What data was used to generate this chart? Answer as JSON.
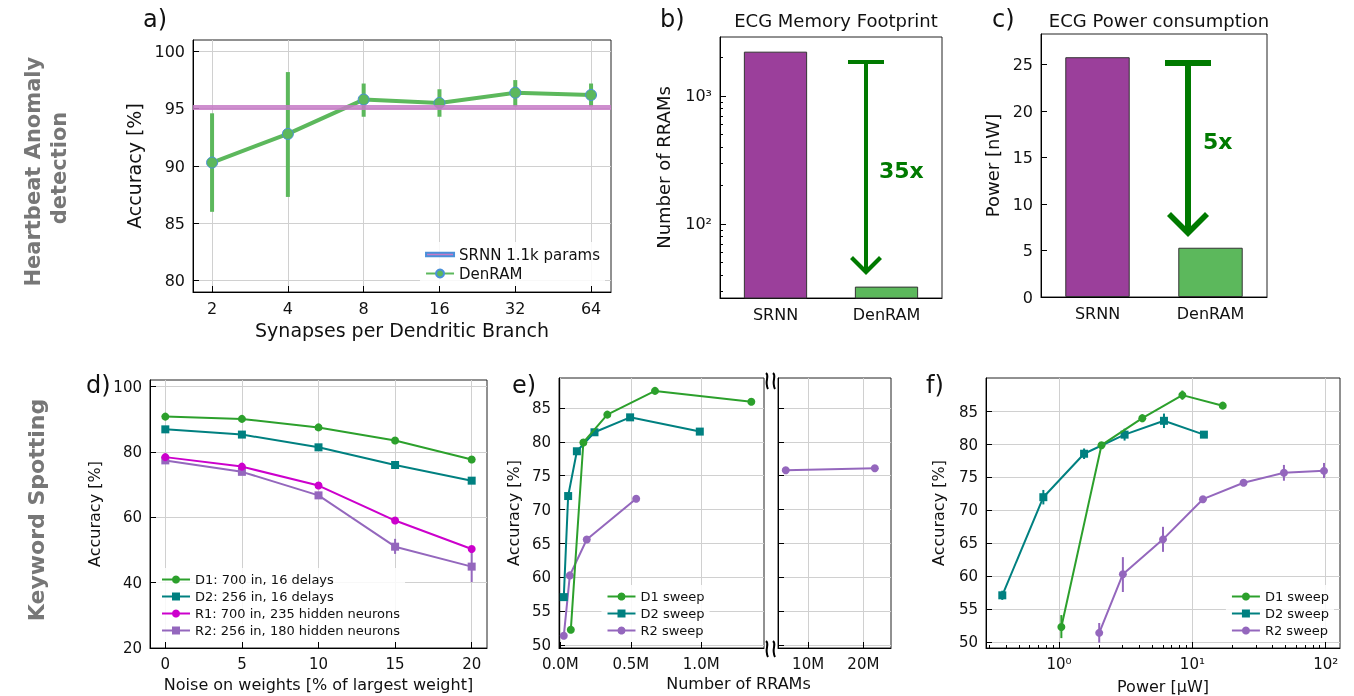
{
  "chart_data": [
    {
      "type": "line",
      "xlabel": "Synapses per Dendritic Branch",
      "ylabel": "Accuracy [%]",
      "log": "x",
      "xlim": [
        1.68,
        76.8
      ],
      "xticks": [
        2,
        4,
        8,
        16,
        32,
        64
      ],
      "ylim": [
        79,
        101
      ],
      "yticks": [
        80,
        85,
        90,
        95,
        100
      ],
      "grid": true,
      "legend": "bottom right",
      "annotations": [
        "a)",
        "Heartbeat Anomaly detection"
      ],
      "series": [
        {
          "name": "SRNN 1.1k params",
          "color": "#c57ac5",
          "marker": "none",
          "x": [
            1.68,
            76.8
          ],
          "values": [
            95.1,
            95.1
          ]
        },
        {
          "name": "DenRAM",
          "color": "#5cb85c",
          "marker": "circle",
          "x": [
            2,
            4,
            8,
            16,
            32,
            64
          ],
          "values": [
            90.3,
            92.8,
            95.8,
            95.5,
            96.4,
            96.2
          ],
          "errors": [
            [
              86.0,
              94.6
            ],
            [
              87.3,
              98.2
            ],
            [
              94.3,
              97.2
            ],
            [
              94.3,
              96.7
            ],
            [
              95.2,
              97.5
            ],
            [
              95.2,
              97.2
            ]
          ]
        }
      ]
    },
    {
      "type": "bar",
      "title": "ECG Memory Footprint",
      "ylabel": "Number of RRAMs",
      "categories": [
        "SRNN",
        "DenRAM"
      ],
      "values": [
        2220,
        32.4
      ],
      "colors": [
        "#9b3f9b",
        "#5cb85c"
      ],
      "log": "y",
      "ylim": [
        26.4,
        2890
      ],
      "yticks": [
        {
          "value": 100,
          "label": "10²"
        },
        {
          "value": 1000,
          "label": "10³"
        }
      ],
      "annotations": [
        "b)",
        "35x"
      ]
    },
    {
      "type": "bar",
      "title": "ECG Power consumption",
      "ylabel": "Power [nW]",
      "categories": [
        "SRNN",
        "DenRAM"
      ],
      "values": [
        25.8,
        5.3
      ],
      "colors": [
        "#9b3f9b",
        "#5cb85c"
      ],
      "ylim": [
        0,
        28.3
      ],
      "yticks": [
        0,
        5,
        10,
        15,
        20,
        25
      ],
      "annotations": [
        "c)",
        "5x"
      ]
    },
    {
      "type": "line",
      "xlabel": "Noise on weights [% of largest weight]",
      "ylabel": "Accuracy [%]",
      "x": [
        0,
        5,
        10,
        15,
        20
      ],
      "xlim": [
        -1,
        21
      ],
      "xticks": [
        0,
        5,
        10,
        15,
        20
      ],
      "ylim": [
        20,
        102
      ],
      "yticks": [
        20,
        40,
        60,
        80,
        100
      ],
      "grid": true,
      "legend": "bottom left",
      "annotations": [
        "d)",
        "Keyword Spotting"
      ],
      "series": [
        {
          "name": "D1: 700 in, 16 delays",
          "color": "#2ca02c",
          "marker": "circle",
          "values": [
            90.8,
            90.1,
            87.5,
            83.5,
            77.7
          ]
        },
        {
          "name": "D2: 256 in, 16 delays",
          "color": "#008080",
          "marker": "square",
          "values": [
            86.9,
            85.3,
            81.4,
            76.0,
            71.2
          ]
        },
        {
          "name": "R1: 700 in, 235 hidden neurons",
          "color": "#cc00cc",
          "marker": "circle",
          "values": [
            78.4,
            75.5,
            69.7,
            59.0,
            50.3
          ]
        },
        {
          "name": "R2: 256 in, 180 hidden neurons",
          "color": "#9467bd",
          "marker": "square",
          "values": [
            77.4,
            73.9,
            66.7,
            51.0,
            44.9
          ],
          "errors": [
            null,
            null,
            null,
            [
              48.8,
              53.4
            ],
            [
              40.2,
              49.3
            ]
          ]
        }
      ]
    },
    {
      "type": "line",
      "xlabel": "Number of RRAMs",
      "ylabel": "Accuracy [%]",
      "xlim": [
        -10000,
        1446000
      ],
      "xticks": [
        {
          "value": 0,
          "label": "0.0M"
        },
        {
          "value": 500000,
          "label": "0.5M"
        },
        {
          "value": 1000000,
          "label": "1.0M"
        }
      ],
      "ylim": [
        49.6,
        89.4
      ],
      "yticks": [
        50,
        55,
        60,
        65,
        70,
        75,
        80,
        85
      ],
      "grid": true,
      "legend": "bottom",
      "annotations": [
        "e)"
      ],
      "series": [
        {
          "name": "D1 sweep",
          "color": "#2ca02c",
          "marker": "circle",
          "x": [
            74000,
            163000,
            333000,
            672000,
            1356000
          ],
          "values": [
            52.3,
            79.9,
            84.0,
            87.5,
            85.9
          ]
        },
        {
          "name": "D2 sweep",
          "color": "#008080",
          "marker": "square",
          "x": [
            24000,
            55000,
            117000,
            242000,
            495000,
            990000
          ],
          "values": [
            57.1,
            72.0,
            78.6,
            81.4,
            83.6,
            81.5
          ]
        },
        {
          "name": "R2 sweep",
          "color": "#9467bd",
          "marker": "circle",
          "x": [
            24000,
            67000,
            187000,
            538000
          ],
          "values": [
            51.4,
            60.3,
            65.6,
            71.6
          ]
        }
      ]
    },
    {
      "type": "line",
      "xlim": [
        4550000,
        25000000
      ],
      "xticks": [
        {
          "value": 10000000,
          "label": "10M"
        },
        {
          "value": 20000000,
          "label": "20M"
        }
      ],
      "ylim": [
        49.6,
        89.4
      ],
      "yticks": [
        50,
        55,
        60,
        65,
        70,
        75,
        80,
        85
      ],
      "grid": true,
      "tick_labels": "x",
      "series": [
        {
          "color": "#9467bd",
          "marker": "circle",
          "x": [
            5950000,
            22070000
          ],
          "values": [
            75.8,
            76.1
          ]
        }
      ]
    },
    {
      "type": "line",
      "xlabel": "Power [μW]",
      "ylabel": "Accuracy [%]",
      "log": "x",
      "xlim": [
        0.283,
        128
      ],
      "xticks": [
        {
          "value": 1,
          "label": "10⁰"
        },
        {
          "value": 10,
          "label": "10¹"
        },
        {
          "value": 100,
          "label": "10²"
        }
      ],
      "ylim": [
        49.1,
        90.1
      ],
      "yticks": [
        50,
        55,
        60,
        65,
        70,
        75,
        80,
        85
      ],
      "grid": true,
      "legend": "bottom right",
      "annotations": [
        "f)"
      ],
      "series": [
        {
          "name": "D1 sweep",
          "color": "#2ca02c",
          "marker": "circle",
          "x": [
            1.04,
            2.08,
            4.21,
            8.41,
            16.9
          ],
          "values": [
            52.3,
            79.9,
            84.0,
            87.5,
            85.9
          ],
          "errors": [
            [
              50.6,
              54.1
            ],
            null,
            [
              83.4,
              84.6
            ],
            [
              86.8,
              88.2
            ],
            null
          ]
        },
        {
          "name": "D2 sweep",
          "color": "#008080",
          "marker": "square",
          "x": [
            0.375,
            0.762,
            1.54,
            3.1,
            6.12,
            12.2
          ],
          "values": [
            57.1,
            72.0,
            78.6,
            81.5,
            83.6,
            81.5
          ],
          "errors": [
            [
              56.4,
              57.8
            ],
            [
              70.9,
              73.1
            ],
            [
              77.8,
              79.4
            ],
            [
              80.6,
              82.4
            ],
            [
              82.5,
              84.7
            ],
            null
          ]
        },
        {
          "name": "R2 sweep",
          "color": "#9467bd",
          "marker": "circle",
          "x": [
            2.0,
            3.01,
            6.02,
            12.0,
            24.2,
            48.6,
            97.1
          ],
          "values": [
            51.4,
            60.3,
            65.6,
            71.7,
            74.2,
            75.7,
            76.0
          ],
          "errors": [
            [
              49.9,
              52.9
            ],
            [
              57.6,
              62.9
            ],
            [
              63.7,
              67.5
            ],
            null,
            null,
            [
              74.5,
              76.9
            ],
            [
              74.9,
              77.2
            ]
          ]
        }
      ]
    }
  ]
}
